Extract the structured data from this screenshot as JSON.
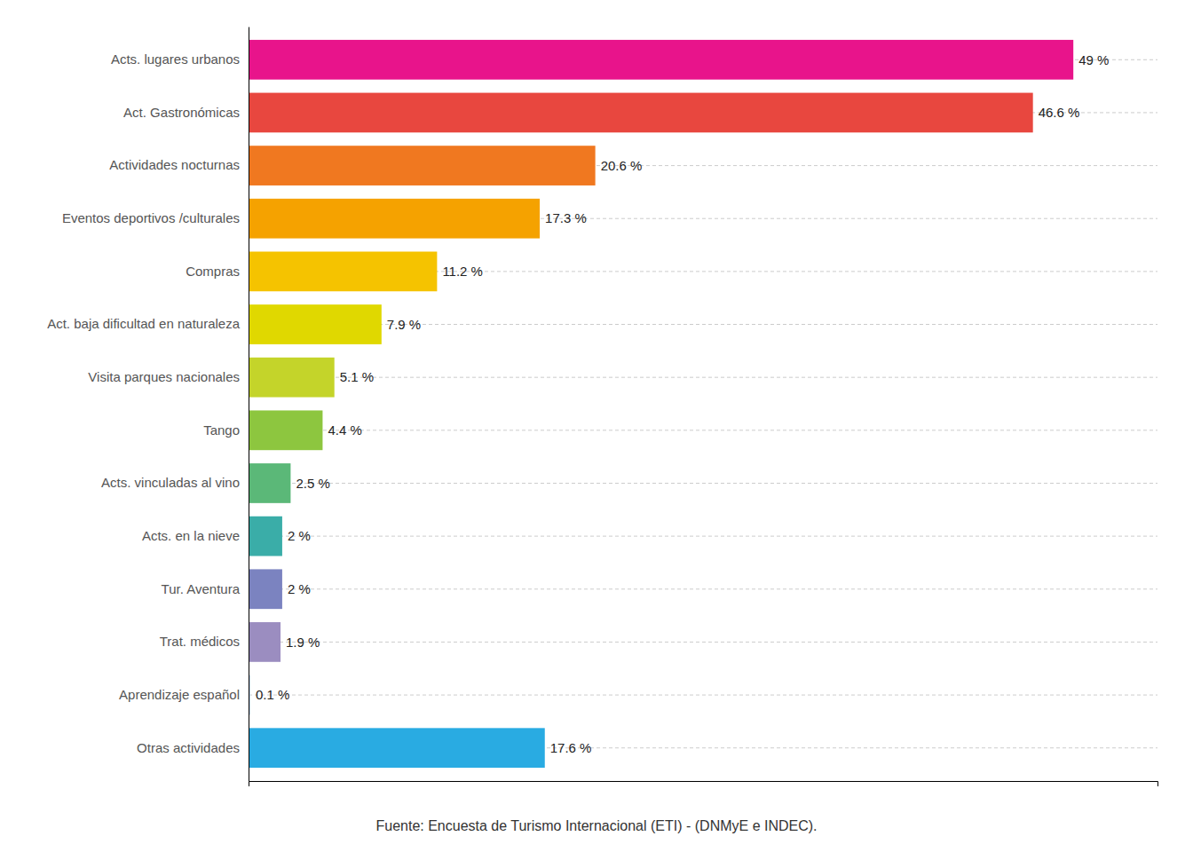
{
  "chart_data": {
    "type": "bar",
    "orientation": "horizontal",
    "categories": [
      "Otras actividades",
      "Aprendizaje español",
      "Trat. médicos",
      "Tur. Aventura",
      "Acts. en la nieve",
      "Acts. vinculadas al vino",
      "Tango",
      "Visita parques nacionales",
      "Act. baja dificultad en naturaleza",
      "Compras",
      "Eventos deportivos /culturales",
      "Actividades nocturnas",
      "Act. Gastronómicas",
      "Acts. lugares urbanos"
    ],
    "values": [
      17.6,
      0.1,
      1.9,
      2.0,
      2.0,
      2.5,
      4.4,
      5.1,
      7.9,
      11.2,
      17.3,
      20.6,
      46.6,
      49.0
    ],
    "value_labels": [
      "17.6 %",
      "0.1 %",
      "1.9 %",
      "2 %",
      "2 %",
      "2.5 %",
      "4.4 %",
      "5.1 %",
      "7.9 %",
      "11.2 %",
      "17.3 %",
      "20.6 %",
      "46.6 %",
      "49 %"
    ],
    "colors": [
      "#29ABE2",
      "#B8D0E8",
      "#9B8DC0",
      "#7B83C0",
      "#3AADA8",
      "#5BB878",
      "#8DC63F",
      "#C4D42A",
      "#E0D800",
      "#F5C300",
      "#F5A200",
      "#F07820",
      "#E8473F",
      "#E8148B"
    ],
    "xlim": [
      0,
      54
    ],
    "xticks": [],
    "data_labels": true,
    "tick_labels": "y",
    "grid": true,
    "annotations": [
      "Fuente: Encuesta de Turismo Internacional (ETI) - (DNMyE e INDEC)."
    ]
  }
}
